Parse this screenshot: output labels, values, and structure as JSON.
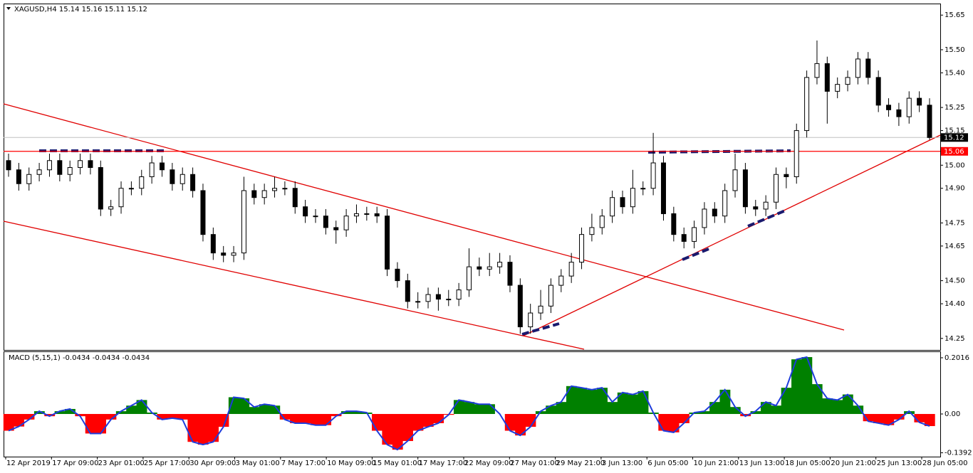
{
  "chart_data": {
    "type": "candlestick",
    "header": "XAGUSD,H4  15.14 15.16 15.11 15.12",
    "ylim": [
      14.2,
      15.7
    ],
    "yticks": [
      15.65,
      {
        "value": 15.5,
        "label": "15.50"
      },
      {
        "value": 15.4,
        "label": "15.40"
      },
      15.25,
      15.15,
      {
        "value": 15.0,
        "label": "15.00"
      },
      {
        "value": 14.9,
        "label": "14.90"
      },
      14.75,
      14.65,
      {
        "value": 14.5,
        "label": "14.50"
      },
      {
        "value": 14.4,
        "label": "14.40"
      },
      14.25
    ],
    "current_price": 15.12,
    "level": 15.06,
    "level_color": "#ff0000",
    "xlabels": [
      "12 Apr 2019",
      "17 Apr 09:00",
      "23 Apr 01:00",
      "25 Apr 17:00",
      "30 Apr 09:00",
      "3 May 01:00",
      "7 May 17:00",
      "10 May 09:00",
      "15 May 01:00",
      "17 May 17:00",
      "22 May 09:00",
      "27 May 01:00",
      "29 May 21:00",
      "3 Jun 13:00",
      "6 Jun 05:00",
      "10 Jun 21:00",
      "13 Jun 13:00",
      "18 Jun 05:00",
      "20 Jun 21:00",
      "25 Jun 13:00",
      "28 Jun 05:00"
    ],
    "ohlc": [
      [
        15.02,
        15.05,
        14.95,
        14.98
      ],
      [
        14.98,
        15.01,
        14.89,
        14.92
      ],
      [
        14.92,
        14.99,
        14.89,
        14.96
      ],
      [
        14.96,
        15.01,
        14.93,
        14.98
      ],
      [
        14.98,
        15.05,
        14.95,
        15.02
      ],
      [
        15.02,
        15.05,
        14.93,
        14.96
      ],
      [
        14.96,
        15.02,
        14.93,
        14.99
      ],
      [
        14.99,
        15.05,
        14.96,
        15.02
      ],
      [
        15.02,
        15.05,
        14.96,
        14.99
      ],
      [
        14.99,
        15.02,
        14.78,
        14.81
      ],
      [
        14.81,
        14.85,
        14.78,
        14.82
      ],
      [
        14.82,
        14.93,
        14.79,
        14.9
      ],
      [
        14.9,
        14.93,
        14.87,
        14.9
      ],
      [
        14.9,
        14.98,
        14.87,
        14.95
      ],
      [
        14.95,
        15.04,
        14.92,
        15.01
      ],
      [
        15.01,
        15.04,
        14.95,
        14.98
      ],
      [
        14.98,
        15.01,
        14.89,
        14.92
      ],
      [
        14.92,
        14.99,
        14.89,
        14.96
      ],
      [
        14.96,
        14.99,
        14.86,
        14.89
      ],
      [
        14.89,
        14.92,
        14.67,
        14.7
      ],
      [
        14.7,
        14.73,
        14.59,
        14.62
      ],
      [
        14.62,
        14.65,
        14.58,
        14.61
      ],
      [
        14.61,
        14.65,
        14.58,
        14.62
      ],
      [
        14.62,
        14.95,
        14.59,
        14.89
      ],
      [
        14.89,
        14.92,
        14.83,
        14.86
      ],
      [
        14.86,
        14.92,
        14.83,
        14.89
      ],
      [
        14.89,
        14.95,
        14.86,
        14.9
      ],
      [
        14.9,
        14.93,
        14.87,
        14.9
      ],
      [
        14.9,
        14.93,
        14.79,
        14.82
      ],
      [
        14.82,
        14.85,
        14.75,
        14.78
      ],
      [
        14.78,
        14.81,
        14.75,
        14.78
      ],
      [
        14.78,
        14.81,
        14.7,
        14.73
      ],
      [
        14.73,
        14.76,
        14.66,
        14.72
      ],
      [
        14.72,
        14.81,
        14.69,
        14.78
      ],
      [
        14.78,
        14.83,
        14.75,
        14.79
      ],
      [
        14.79,
        14.82,
        14.76,
        14.79
      ],
      [
        14.79,
        14.82,
        14.75,
        14.78
      ],
      [
        14.78,
        14.81,
        14.52,
        14.55
      ],
      [
        14.55,
        14.58,
        14.47,
        14.5
      ],
      [
        14.5,
        14.53,
        14.38,
        14.41
      ],
      [
        14.41,
        14.45,
        14.38,
        14.41
      ],
      [
        14.41,
        14.47,
        14.38,
        14.44
      ],
      [
        14.44,
        14.47,
        14.37,
        14.42
      ],
      [
        14.42,
        14.46,
        14.39,
        14.42
      ],
      [
        14.42,
        14.49,
        14.39,
        14.46
      ],
      [
        14.46,
        14.64,
        14.43,
        14.56
      ],
      [
        14.56,
        14.6,
        14.52,
        14.55
      ],
      [
        14.55,
        14.62,
        14.52,
        14.56
      ],
      [
        14.56,
        14.62,
        14.53,
        14.58
      ],
      [
        14.58,
        14.61,
        14.45,
        14.48
      ],
      [
        14.48,
        14.51,
        14.27,
        14.3
      ],
      [
        14.3,
        14.4,
        14.27,
        14.36
      ],
      [
        14.36,
        14.46,
        14.33,
        14.39
      ],
      [
        14.39,
        14.51,
        14.36,
        14.48
      ],
      [
        14.48,
        14.55,
        14.45,
        14.52
      ],
      [
        14.52,
        14.62,
        14.49,
        14.58
      ],
      [
        14.58,
        14.73,
        14.55,
        14.7
      ],
      [
        14.7,
        14.79,
        14.67,
        14.73
      ],
      [
        14.73,
        14.81,
        14.7,
        14.78
      ],
      [
        14.78,
        14.89,
        14.75,
        14.86
      ],
      [
        14.86,
        14.89,
        14.79,
        14.82
      ],
      [
        14.82,
        14.98,
        14.79,
        14.9
      ],
      [
        14.9,
        14.93,
        14.87,
        14.9
      ],
      [
        14.9,
        15.14,
        14.87,
        15.01
      ],
      [
        15.01,
        15.04,
        14.76,
        14.79
      ],
      [
        14.79,
        14.82,
        14.67,
        14.7
      ],
      [
        14.7,
        14.73,
        14.64,
        14.67
      ],
      [
        14.67,
        14.76,
        14.64,
        14.73
      ],
      [
        14.73,
        14.84,
        14.7,
        14.81
      ],
      [
        14.81,
        14.84,
        14.75,
        14.78
      ],
      [
        14.78,
        14.92,
        14.75,
        14.89
      ],
      [
        14.89,
        15.05,
        14.86,
        14.98
      ],
      [
        14.98,
        15.01,
        14.79,
        14.82
      ],
      [
        14.82,
        14.85,
        14.78,
        14.81
      ],
      [
        14.81,
        14.87,
        14.78,
        14.84
      ],
      [
        14.84,
        14.99,
        14.81,
        14.96
      ],
      [
        14.96,
        14.99,
        14.9,
        14.95
      ],
      [
        14.95,
        15.18,
        14.92,
        15.15
      ],
      [
        15.15,
        15.41,
        15.12,
        15.38
      ],
      [
        15.38,
        15.54,
        15.35,
        15.44
      ],
      [
        15.44,
        15.47,
        15.18,
        15.32
      ],
      [
        15.32,
        15.38,
        15.29,
        15.35
      ],
      [
        15.35,
        15.41,
        15.32,
        15.38
      ],
      [
        15.38,
        15.49,
        15.35,
        15.46
      ],
      [
        15.46,
        15.49,
        15.35,
        15.38
      ],
      [
        15.38,
        15.41,
        15.23,
        15.26
      ],
      [
        15.26,
        15.29,
        15.21,
        15.24
      ],
      [
        15.24,
        15.27,
        15.17,
        15.21
      ],
      [
        15.21,
        15.32,
        15.18,
        15.29
      ],
      [
        15.29,
        15.32,
        15.23,
        15.26
      ],
      [
        15.26,
        15.29,
        15.11,
        15.12
      ]
    ],
    "macd": {
      "label": "MACD (5,15,1) -0.0434 -0.0434 -0.0434",
      "ylim": [
        -0.153,
        0.2245
      ],
      "yticks": [
        0.2016,
        {
          "value": 0,
          "label": "0.00"
        },
        -0.1392
      ],
      "up_color": "#008000",
      "down_color": "#ff0000",
      "line_color": "#1e3cdc",
      "values": [
        -0.06,
        -0.045,
        -0.02,
        0.01,
        -0.008,
        0.01,
        0.018,
        -0.008,
        -0.07,
        -0.07,
        -0.02,
        0.01,
        0.03,
        0.05,
        0.005,
        -0.02,
        -0.015,
        -0.02,
        -0.1,
        -0.11,
        -0.1,
        -0.046,
        0.06,
        0.056,
        0.025,
        0.035,
        0.03,
        -0.02,
        -0.033,
        -0.033,
        -0.04,
        -0.04,
        -0.008,
        0.01,
        0.01,
        0.005,
        -0.06,
        -0.11,
        -0.128,
        -0.097,
        -0.06,
        -0.046,
        -0.033,
        -0.003,
        0.05,
        0.043,
        0.035,
        0.035,
        0,
        -0.06,
        -0.077,
        -0.046,
        0.01,
        0.03,
        0.043,
        0.1,
        0.094,
        0.087,
        0.094,
        0.043,
        0.077,
        0.07,
        0.082,
        0.005,
        -0.06,
        -0.066,
        -0.033,
        0.005,
        0.01,
        0.043,
        0.087,
        0.025,
        -0.008,
        0.01,
        0.043,
        0.03,
        0.094,
        0.196,
        0.204,
        0.107,
        0.056,
        0.05,
        0.07,
        0.03,
        -0.026,
        -0.033,
        -0.04,
        -0.02,
        0.01,
        -0.03,
        -0.0434
      ]
    }
  }
}
